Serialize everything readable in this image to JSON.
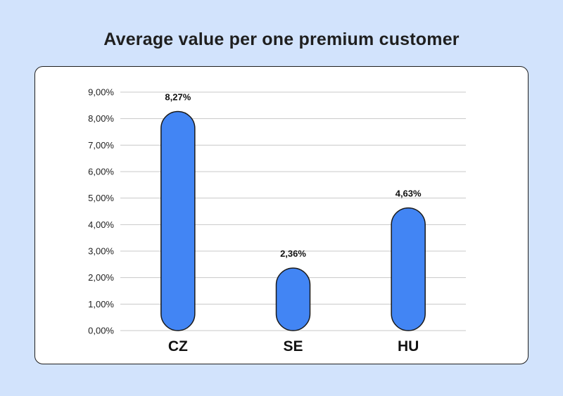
{
  "chart_data": {
    "type": "bar",
    "title": "Average value per one premium customer",
    "categories": [
      "CZ",
      "SE",
      "HU"
    ],
    "values": [
      8.27,
      2.36,
      4.63
    ],
    "value_labels": [
      "8,27%",
      "2,36%",
      "4,63%"
    ],
    "yticks": [
      "0,00%",
      "1,00%",
      "2,00%",
      "3,00%",
      "4,00%",
      "5,00%",
      "6,00%",
      "7,00%",
      "8,00%",
      "9,00%"
    ],
    "ylim": [
      0,
      9
    ],
    "xlabel": "",
    "ylabel": "",
    "grid": true,
    "legend": "none",
    "colors": {
      "bar": "#4285f4",
      "background": "#d2e3fc",
      "card": "#ffffff"
    }
  }
}
